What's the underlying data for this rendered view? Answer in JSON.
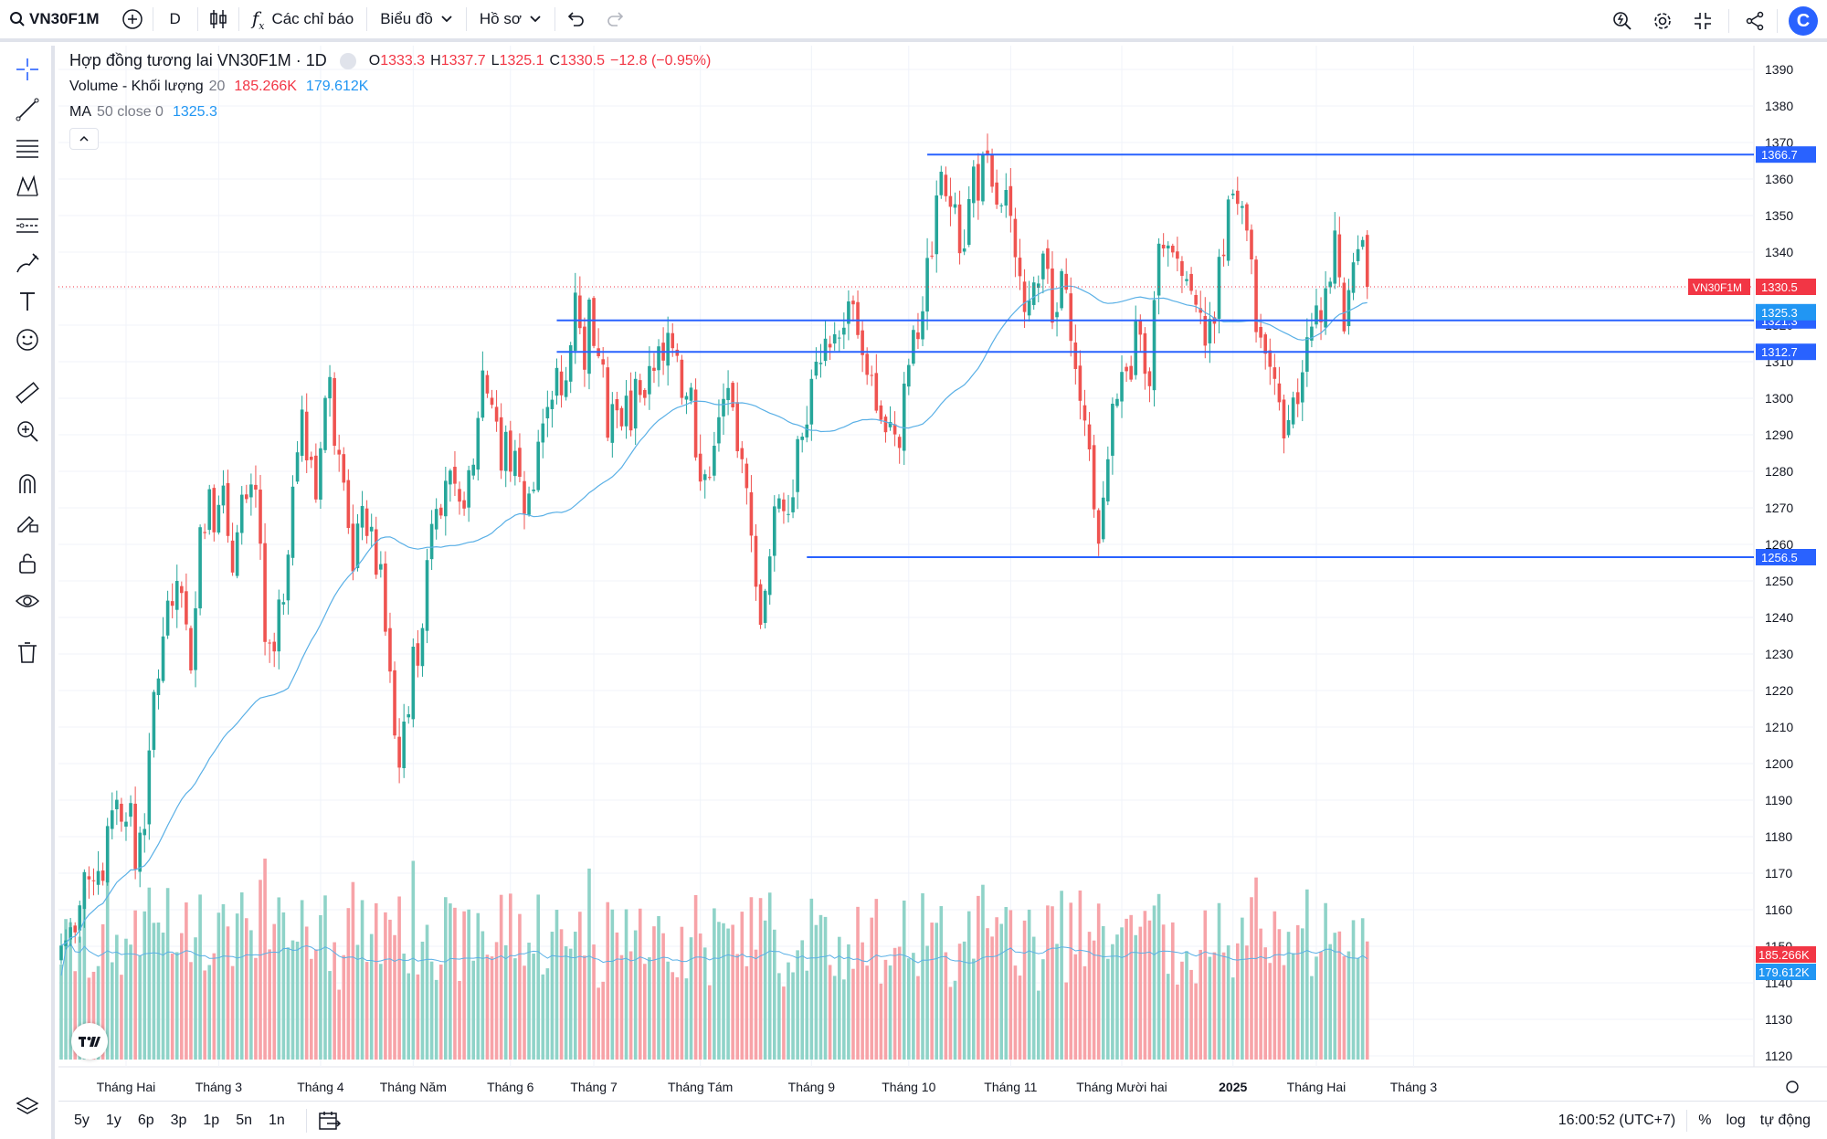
{
  "toolbar": {
    "symbol": "VN30F1M",
    "interval": "D",
    "indicators_label": "Các chỉ báo",
    "chart_label": "Biểu đồ",
    "profile_label": "Hồ sơ",
    "logo_letter": "C"
  },
  "legend": {
    "main_title": "Hợp đồng tương lai VN30F1M · 1D",
    "o_label": "O",
    "o_value": "1333.3",
    "h_label": "H",
    "h_value": "1337.7",
    "l_label": "L",
    "l_value": "1325.1",
    "c_label": "C",
    "c_value": "1330.5",
    "change": "−12.8 (−0.95%)",
    "volume_label": "Volume - Khối lượng",
    "volume_len": "20",
    "volume_val": "185.266K",
    "volume_ma": "179.612K",
    "ma_label": "MA",
    "ma_params": "50 close 0",
    "ma_val": "1325.3"
  },
  "bottom": {
    "ranges": [
      "5y",
      "1y",
      "6p",
      "3p",
      "1p",
      "5n",
      "1n"
    ],
    "time": "16:00:52 (UTC+7)",
    "percent": "%",
    "log": "log",
    "auto": "tự động"
  },
  "colors": {
    "up": "#26a69a",
    "down": "#ef5350",
    "up_vol": "#8fd3c8",
    "down_vol": "#f7a3a8",
    "ma": "#5ab0e6",
    "hline": "#2962ff",
    "price_label_bg": "#f23645"
  },
  "chart_data": {
    "type": "candlestick",
    "symbol_label": "VN30F1M",
    "last_price": 1330.5,
    "ma_value": 1325.3,
    "y_ticks": [
      1120,
      1130,
      1140,
      1150,
      1160,
      1170,
      1180,
      1190,
      1200,
      1210,
      1220,
      1230,
      1240,
      1250,
      1260,
      1270,
      1280,
      1290,
      1300,
      1310,
      1320,
      1330,
      1340,
      1350,
      1360,
      1370,
      1380,
      1390
    ],
    "x_labels": [
      "Tháng Hai",
      "Tháng 3",
      "Tháng 4",
      "Tháng Năm",
      "Tháng 6",
      "Tháng 7",
      "Tháng Tám",
      "Tháng 9",
      "Tháng 10",
      "Tháng 11",
      "Tháng Mười hai",
      "2025",
      "Tháng Hai",
      "Tháng 3"
    ],
    "x_label_bars": [
      14,
      34,
      56,
      76,
      97,
      115,
      138,
      162,
      183,
      205,
      229,
      253,
      271,
      292
    ],
    "horizontal_lines": [
      {
        "value": 1366.7,
        "label": "1366.7",
        "start_bar": 187
      },
      {
        "value": 1321.3,
        "label": "1321.3",
        "start_bar": 107
      },
      {
        "value": 1312.7,
        "label": "1312.7",
        "start_bar": 107
      },
      {
        "value": 1256.5,
        "label": "1256.5",
        "start_bar": 161
      }
    ],
    "volume_labels": [
      "185.266K",
      "179.612K"
    ],
    "closes": [
      1150.2,
      1151.6,
      1155.2,
      1153.8,
      1161.2,
      1170.3,
      1168.3,
      1167.8,
      1170.6,
      1167.9,
      1182.9,
      1187.2,
      1190.1,
      1184.1,
      1184.1,
      1189.2,
      1171.1,
      1181.1,
      1182.1,
      1203.6,
      1219.6,
      1223.3,
      1234.8,
      1244.6,
      1243.2,
      1250.0,
      1246.7,
      1238.1,
      1225.5,
      1242.5,
      1264.7,
      1263.1,
      1275.1,
      1263.3,
      1270.8,
      1276.1,
      1262.3,
      1252.3,
      1263.3,
      1273.6,
      1272.4,
      1276.4,
      1275.0,
      1260.2,
      1233.3,
      1232.9,
      1230.7,
      1244.9,
      1244.2,
      1257.2,
      1275.8,
      1285.2,
      1296.9,
      1283.0,
      1283.1,
      1272.3,
      1286.3,
      1300.1,
      1305.8,
      1287.0,
      1284.6,
      1276.9,
      1264.5,
      1252.6,
      1265.7,
      1270.5,
      1262.3,
      1264.8,
      1251.7,
      1254.6,
      1236.1,
      1225.2,
      1207.7,
      1198.9,
      1211.5,
      1213.5,
      1232.0,
      1226.8,
      1237.1,
      1255.7,
      1265.6,
      1269.7,
      1267.9,
      1277.4,
      1280.2,
      1276.6,
      1271.7,
      1269.8,
      1280.3,
      1281.8,
      1294.6,
      1307.6,
      1301.3,
      1298.2,
      1293.6,
      1280.2,
      1290.8,
      1279.9,
      1285.6,
      1278.5,
      1268.4,
      1273.9,
      1275.0,
      1288.1,
      1293.1,
      1297.6,
      1299.6,
      1308.3,
      1300.8,
      1304.9,
      1314.5,
      1328.9,
      1319.2,
      1307.8,
      1327.0,
      1314.3,
      1311.5,
      1309.2,
      1289.2,
      1298.4,
      1296.7,
      1292.3,
      1300.7,
      1291.2,
      1305.3,
      1300.9,
      1300.1,
      1308.8,
      1307.5,
      1314.2,
      1310.3,
      1317.9,
      1313.7,
      1311.6,
      1300.1,
      1300.6,
      1302.9,
      1283.8,
      1277.2,
      1279.2,
      1278.4,
      1287.0,
      1294.8,
      1299.8,
      1302.8,
      1297.5,
      1285.5,
      1283.3,
      1275.4,
      1262.4,
      1248.4,
      1238.0,
      1247.3,
      1256.7,
      1270.4,
      1272.6,
      1269.1,
      1268.3,
      1272.9,
      1288.8,
      1289.5,
      1292.8,
      1305.3,
      1310.0,
      1309.7,
      1316.3,
      1313.9,
      1317.5,
      1316.6,
      1319.3,
      1326.5,
      1325.7,
      1317.3,
      1311.8,
      1306.4,
      1306.2,
      1296.6,
      1294.1,
      1290.7,
      1293.5,
      1290.1,
      1286.4,
      1304.0,
      1309.1,
      1318.7,
      1316.2,
      1323.8,
      1338.4,
      1338.9,
      1355.5,
      1362.0,
      1355.3,
      1352.4,
      1353.1,
      1339.7,
      1341.0,
      1354.5,
      1363.4,
      1354.1,
      1366.7,
      1366.8,
      1357.9,
      1353.0,
      1352.8,
      1357.0,
      1349.9,
      1338.6,
      1333.4,
      1323.6,
      1326.8,
      1331.7,
      1331.4,
      1339.6,
      1335.4,
      1320.7,
      1323.6,
      1334.8,
      1329.7,
      1315.7,
      1308.0,
      1299.3,
      1293.9,
      1286.0,
      1269.6,
      1260.2,
      1272.8,
      1283.3,
      1298.5,
      1299.8,
      1307.2,
      1307.4,
      1305.1,
      1321.1,
      1317.4,
      1306.7,
      1303.3,
      1326.9,
      1342.3,
      1341.0,
      1341.8,
      1339.9,
      1338.2,
      1333.5,
      1332.6,
      1329.4,
      1325.6,
      1323.4,
      1314.4,
      1321.7,
      1320.4,
      1338.7,
      1338.9,
      1354.4,
      1356.0,
      1353.2,
      1352.6,
      1345.9,
      1338.0,
      1318.1,
      1316.6,
      1312.2,
      1308.6,
      1305.3,
      1298.9,
      1289.0,
      1294.0,
      1300.2,
      1298.4,
      1307.1,
      1316.7,
      1319.6,
      1325.4,
      1320.8,
      1330.1,
      1331.9,
      1345.9,
      1333.1,
      1318.3,
      1329.6,
      1337.2,
      1340.8,
      1343.3,
      1330.5
    ],
    "volume_series": [
      {
        "name": "Volume - Khối lượng",
        "length": 20,
        "last": "185.266K",
        "ma_last": "179.612K"
      }
    ],
    "ma_series": {
      "name": "MA",
      "params": "50 close 0",
      "last": 1325.3
    }
  }
}
